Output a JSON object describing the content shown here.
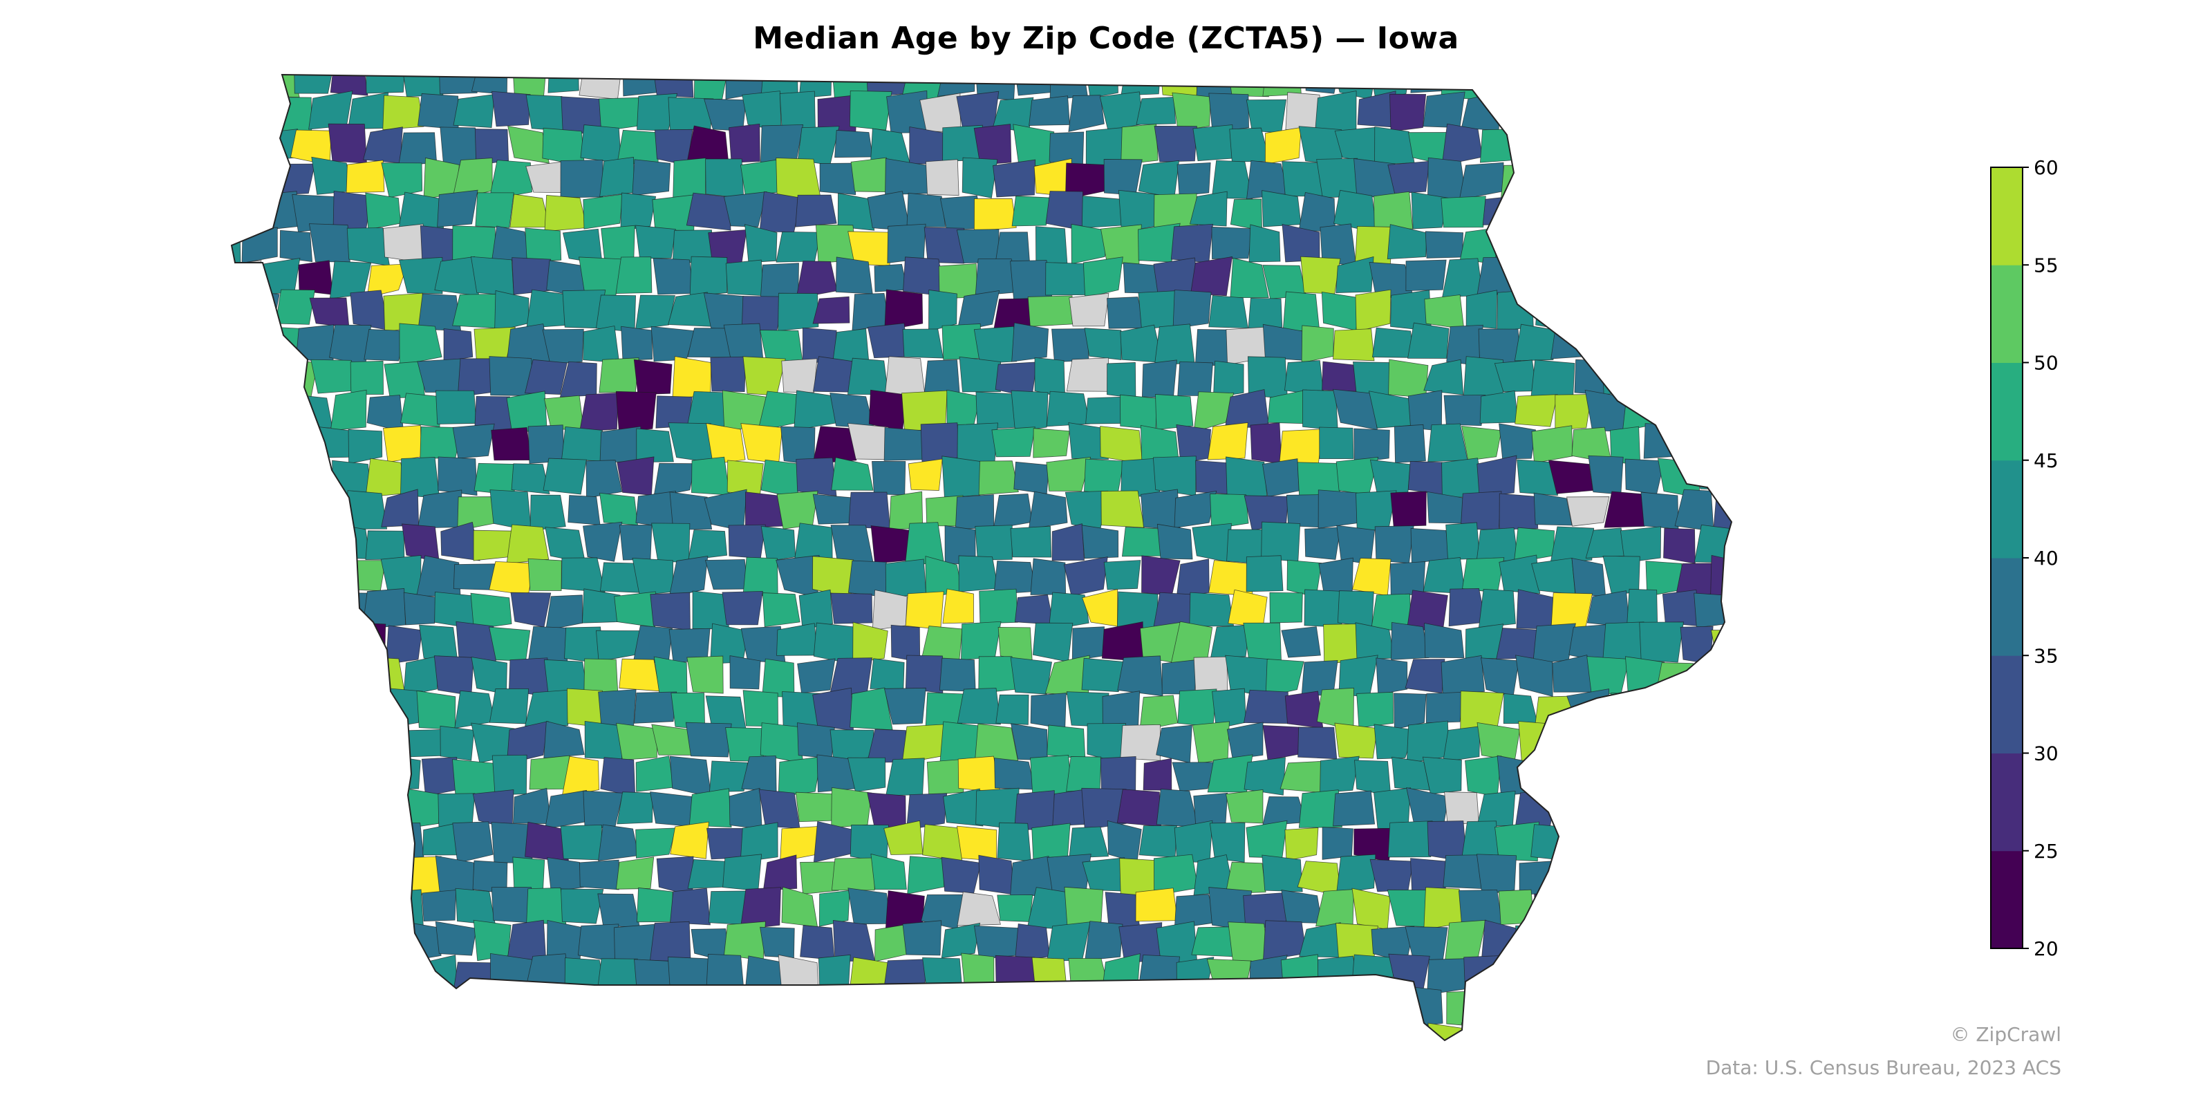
{
  "title": "Median Age by Zip Code (ZCTA5) — Iowa",
  "colorbar": {
    "ticks": [
      "20",
      "25",
      "30",
      "35",
      "40",
      "45",
      "50",
      "55",
      "60"
    ],
    "min": 20,
    "max": 60,
    "step": 5,
    "colors": [
      "#440154",
      "#472d7b",
      "#3b528b",
      "#2c728e",
      "#21918c",
      "#28ae80",
      "#5ec962",
      "#addc30",
      "#fde725"
    ]
  },
  "no_data_color": "#d3d3d3",
  "credits": {
    "watermark": "© ZipCrawl",
    "source": "Data: U.S. Census Bureau, 2023 ACS"
  }
}
